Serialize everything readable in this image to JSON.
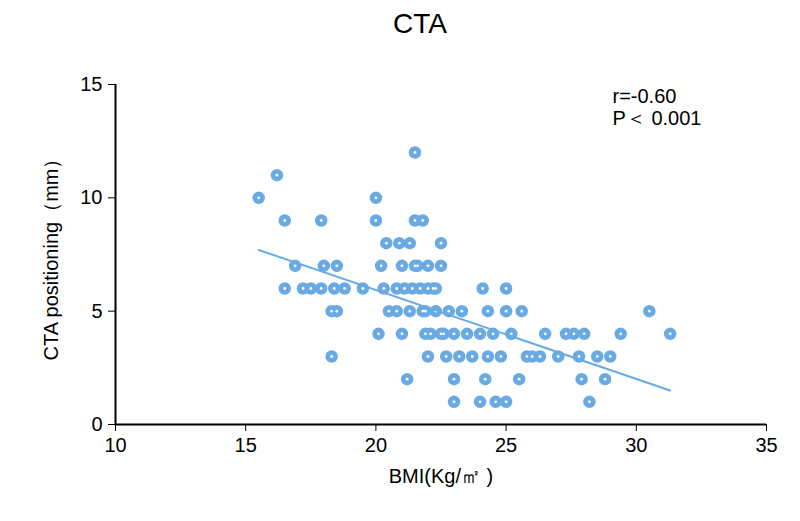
{
  "chart_data": {
    "type": "scatter",
    "title": "CTA",
    "x_label": "BMI(Kg/㎡ )",
    "y_label": "CTA positioning（mm）",
    "annotations": [
      "r=-0.60",
      "P＜ 0.001"
    ],
    "color": "#6aaae4",
    "marker": "circle",
    "x": [
      15.5,
      16.2,
      16.5,
      16.5,
      16.9,
      17.2,
      17.5,
      17.9,
      17.9,
      18,
      18.3,
      18.3,
      18.4,
      18.5,
      18.5,
      18.8,
      19.5,
      20,
      20,
      20.1,
      20.2,
      20.3,
      20.4,
      20.5,
      20.8,
      20.9,
      21,
      21,
      21.1,
      21.2,
      21.3,
      21.3,
      21.5,
      21.5,
      21.6,
      21.7,
      21.8,
      21.9,
      22,
      22,
      22.1,
      22.2,
      22.3,
      22.5,
      22.5,
      22.6,
      22.7,
      22.8,
      23,
      23,
      23,
      23.2,
      23.3,
      23.5,
      23.7,
      24,
      24,
      24.1,
      24.2,
      24.3,
      24.3,
      24.5,
      24.6,
      24.8,
      25,
      25,
      25,
      25.2,
      25.5,
      25.6,
      25.8,
      26,
      26.3,
      26.5,
      27,
      27.3,
      27.6,
      27.8,
      27.9,
      28,
      28.2,
      28.5,
      28.8,
      29,
      29.4,
      30.5,
      31.3,
      21.4,
      21.8,
      22.3,
      22.5,
      21.9,
      20.8,
      21.5,
      22
    ],
    "values": [
      10,
      11,
      9,
      6,
      7,
      6,
      6,
      9,
      6,
      7,
      5,
      3,
      6,
      5,
      7,
      6,
      6,
      10,
      9,
      4,
      7,
      6,
      8,
      5,
      6,
      8,
      4,
      7,
      6,
      2,
      8,
      5,
      12,
      9,
      7,
      6,
      9,
      5,
      7,
      3,
      4,
      6,
      5,
      8,
      7,
      4,
      3,
      5,
      4,
      2,
      1,
      3,
      5,
      4,
      3,
      4,
      1,
      6,
      2,
      5,
      3,
      4,
      1,
      3,
      6,
      1,
      5,
      4,
      2,
      5,
      3,
      3,
      3,
      4,
      3,
      4,
      4,
      3,
      2,
      4,
      1,
      3,
      2,
      3,
      4,
      5,
      4,
      6,
      5,
      6,
      4,
      4,
      5,
      7,
      6
    ],
    "trend_line": {
      "x": [
        15.5,
        31.3
      ],
      "y": [
        7.7,
        1.5
      ]
    },
    "xlim": [
      10,
      35
    ],
    "xticks": [
      10,
      15,
      20,
      25,
      30,
      35
    ],
    "ylim": [
      0,
      15
    ],
    "yticks": [
      0,
      5,
      10,
      15
    ],
    "grid": false
  }
}
